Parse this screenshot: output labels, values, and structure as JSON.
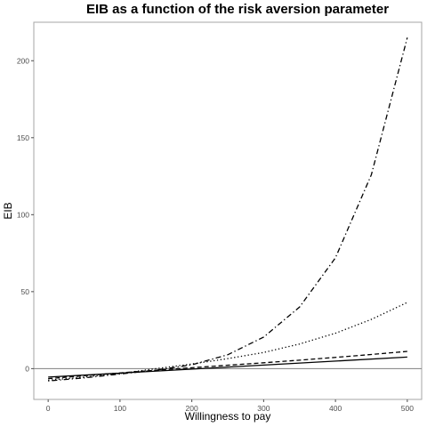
{
  "chart_data": {
    "type": "line",
    "title": "EIB as a function of the risk aversion parameter",
    "xlabel": "Willingness to pay",
    "ylabel": "EIB",
    "xlim": [
      -20,
      520
    ],
    "ylim": [
      -20,
      225
    ],
    "x_ticks": [
      0,
      100,
      200,
      300,
      400,
      500
    ],
    "y_ticks": [
      0,
      50,
      100,
      150,
      200
    ],
    "grid": false,
    "legend": "none",
    "reference_line_y": 0,
    "series": [
      {
        "style": "solid",
        "x": [
          0,
          500
        ],
        "y": [
          -5.5,
          7.5
        ]
      },
      {
        "style": "dashed",
        "x": [
          0,
          50,
          100,
          150,
          200,
          250,
          300,
          350,
          400,
          450,
          500
        ],
        "y": [
          -6.5,
          -4.6,
          -2.8,
          -1.0,
          0.6,
          2.2,
          3.8,
          5.5,
          7.3,
          9.2,
          11.2
        ]
      },
      {
        "style": "dotted",
        "x": [
          0,
          50,
          100,
          150,
          200,
          250,
          300,
          350,
          400,
          450,
          500
        ],
        "y": [
          -7.5,
          -5.5,
          -3.2,
          0.0,
          3.0,
          6.5,
          10.5,
          16.0,
          23.0,
          32.0,
          43.0
        ]
      },
      {
        "style": "dotdash",
        "x": [
          0,
          50,
          100,
          150,
          200,
          250,
          300,
          350,
          400,
          450,
          500
        ],
        "y": [
          -8.0,
          -6.0,
          -3.5,
          -1.0,
          2.5,
          9.0,
          20.5,
          40.0,
          72.0,
          126.0,
          215.0
        ]
      }
    ]
  }
}
